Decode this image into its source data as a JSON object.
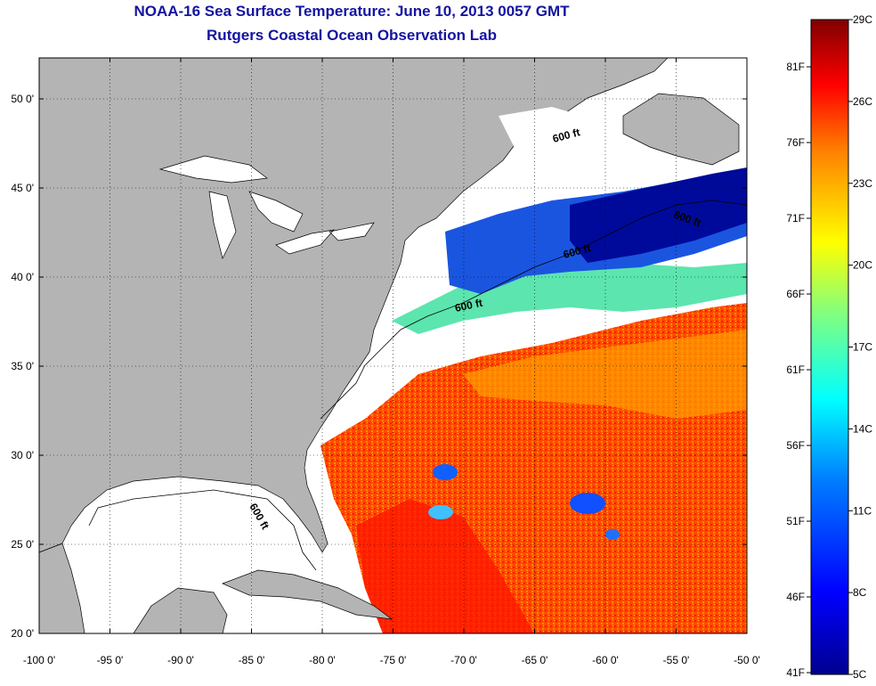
{
  "title": "NOAA-16 Sea Surface Temperature:  June 10, 2013 0057 GMT",
  "subtitle": "Rutgers Coastal Ocean Observation Lab",
  "map": {
    "lon_range": [
      -100,
      -50
    ],
    "lat_range": [
      20,
      52.3
    ],
    "lat_ticks": [
      {
        "value": 50,
        "label": "50 0'"
      },
      {
        "value": 45,
        "label": "45 0'"
      },
      {
        "value": 40,
        "label": "40 0'"
      },
      {
        "value": 35,
        "label": "35 0'"
      },
      {
        "value": 30,
        "label": "30 0'"
      },
      {
        "value": 25,
        "label": "25 0'"
      },
      {
        "value": 20,
        "label": "20 0'"
      }
    ],
    "lon_ticks": [
      {
        "value": -100,
        "label": "-100 0'"
      },
      {
        "value": -95,
        "label": "-95 0'"
      },
      {
        "value": -90,
        "label": "-90 0'"
      },
      {
        "value": -85,
        "label": "-85 0'"
      },
      {
        "value": -80,
        "label": "-80 0'"
      },
      {
        "value": -75,
        "label": "-75 0'"
      },
      {
        "value": -70,
        "label": "-70 0'"
      },
      {
        "value": -65,
        "label": "-65 0'"
      },
      {
        "value": -60,
        "label": "-60 0'"
      },
      {
        "value": -55,
        "label": "-55 0'"
      },
      {
        "value": -50,
        "label": "-50 0'"
      }
    ],
    "contour_label": "600 ft",
    "land_color": "#b4b4b4",
    "cloud_color": "#ffffff"
  },
  "colorbar": {
    "celsius_labels": [
      "29C",
      "26C",
      "23C",
      "20C",
      "17C",
      "14C",
      "11C",
      "8C",
      "5C"
    ],
    "fahrenheit_labels": [
      "81F",
      "76F",
      "71F",
      "66F",
      "61F",
      "56F",
      "51F",
      "46F",
      "41F"
    ],
    "colors": [
      "#00008f",
      "#0000ff",
      "#0080ff",
      "#00ffff",
      "#80ff80",
      "#ffff00",
      "#ff8000",
      "#ff0000",
      "#800000"
    ]
  }
}
